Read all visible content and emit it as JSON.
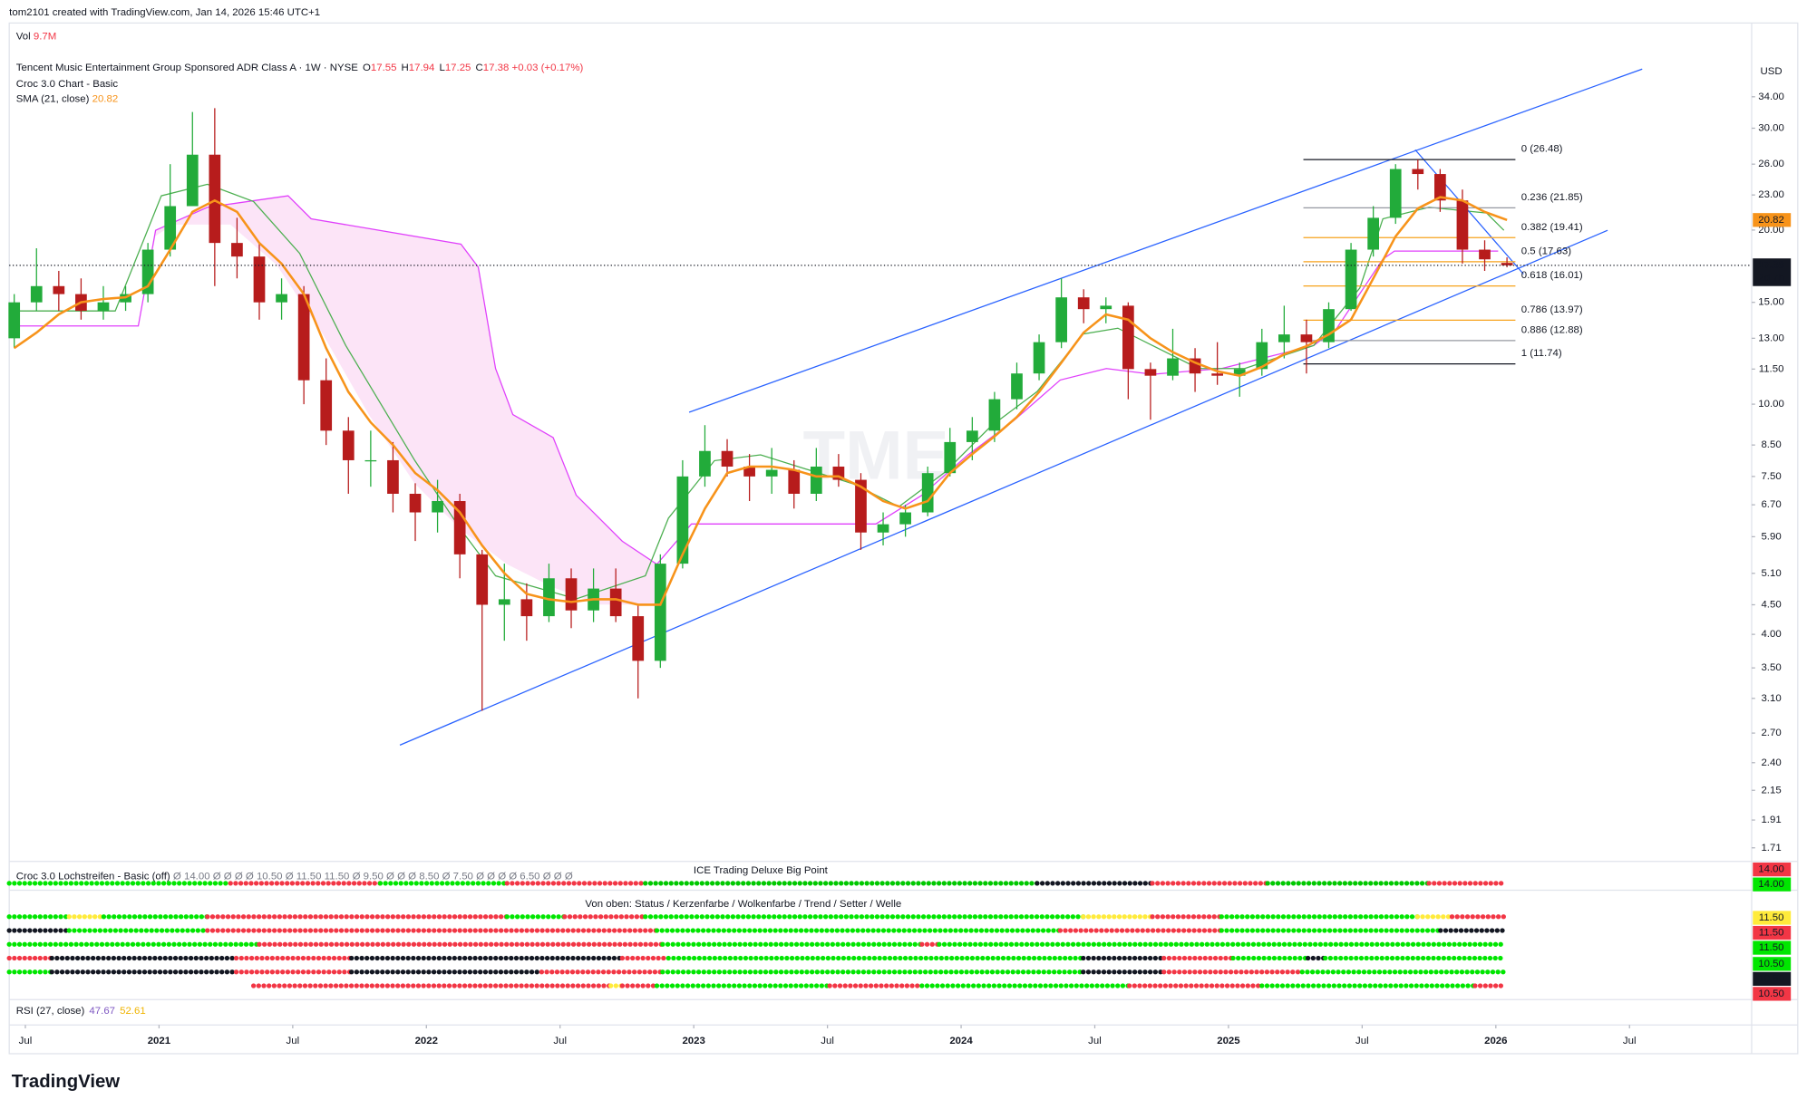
{
  "header": {
    "credit": "tom2101 created with TradingView.com, Jan 14, 2026 15:46 UTC+1",
    "brand": "TradingView",
    "watermark": "TME"
  },
  "chart_data": {
    "type": "candlestick",
    "title": "Tencent Music Entertainment Group Sponsored ADR Class A · 1W · NYSE",
    "quote_keys": [
      "O",
      "H",
      "L",
      "C"
    ],
    "change": "+0.03 (+0.17%)",
    "volume": {
      "label": "Vol",
      "value": "9.7M"
    },
    "currency": "USD",
    "countdown": "2d 7h",
    "up_color": "#22ab3a",
    "down_color": "#b71c1c",
    "log_scale": true,
    "grid": false,
    "x": [
      "2020-06",
      "2020-07",
      "2020-08",
      "2020-09",
      "2020-10",
      "2020-11",
      "2020-12",
      "2021-01",
      "2021-02",
      "2021-03",
      "2021-04",
      "2021-05",
      "2021-06",
      "2021-07",
      "2021-08",
      "2021-09",
      "2021-10",
      "2021-11",
      "2021-12",
      "2022-01",
      "2022-02",
      "2022-03",
      "2022-04",
      "2022-05",
      "2022-06",
      "2022-07",
      "2022-08",
      "2022-09",
      "2022-10",
      "2022-11",
      "2022-12",
      "2023-01",
      "2023-02",
      "2023-03",
      "2023-04",
      "2023-05",
      "2023-06",
      "2023-07",
      "2023-08",
      "2023-09",
      "2023-10",
      "2023-11",
      "2023-12",
      "2024-01",
      "2024-02",
      "2024-03",
      "2024-04",
      "2024-05",
      "2024-06",
      "2024-07",
      "2024-08",
      "2024-09",
      "2024-10",
      "2024-11",
      "2024-12",
      "2025-01",
      "2025-02",
      "2025-03",
      "2025-04",
      "2025-05",
      "2025-06",
      "2025-07",
      "2025-08",
      "2025-09",
      "2025-10",
      "2025-11",
      "2025-12",
      "2026-01"
    ],
    "open": [
      13,
      15,
      16,
      15.5,
      14.5,
      15,
      15.5,
      18.5,
      22,
      27,
      19,
      18,
      15,
      15.5,
      11,
      9,
      8,
      8,
      7,
      6.5,
      6.8,
      5.5,
      4.5,
      4.6,
      4.3,
      5,
      4.4,
      4.8,
      4.3,
      3.6,
      5.3,
      7.5,
      8.3,
      7.8,
      7.5,
      7.7,
      7,
      7.8,
      7.4,
      6,
      6.2,
      6.5,
      7.6,
      8.6,
      9,
      10.2,
      11.3,
      12.8,
      15.3,
      14.6,
      14.8,
      11.5,
      11.2,
      12,
      11.3,
      11.2,
      11.5,
      12.8,
      13.2,
      12.8,
      14.6,
      18.5,
      21,
      25.5,
      25,
      22.5,
      18.5,
      17.55
    ],
    "high": [
      15.5,
      18.6,
      17,
      16.5,
      16,
      16,
      19,
      26,
      32,
      32.5,
      21,
      19,
      16.5,
      16,
      12,
      9.5,
      9,
      8.6,
      7.3,
      7.4,
      7,
      5.6,
      5.3,
      4.9,
      5.3,
      5.2,
      5.2,
      5.2,
      4.5,
      5.5,
      8,
      9.2,
      8.7,
      8.2,
      8.4,
      8,
      8.4,
      8.2,
      7.6,
      6.5,
      6.7,
      7.8,
      9.1,
      9.5,
      10.5,
      11.8,
      13.2,
      16.5,
      15.8,
      15.3,
      15,
      11.8,
      13.5,
      12.5,
      12.8,
      11.8,
      13.5,
      14.8,
      14,
      15,
      19,
      22,
      26,
      26.48,
      25.5,
      23.5,
      19.2,
      17.94
    ],
    "low": [
      12.5,
      14.5,
      14.5,
      14,
      14,
      14.5,
      15,
      18,
      22,
      16,
      16.5,
      14,
      14,
      10,
      8.5,
      7,
      7.2,
      6.5,
      5.8,
      6,
      5,
      2.95,
      3.9,
      3.9,
      4.2,
      4.1,
      4.2,
      4.2,
      3.1,
      3.5,
      5.2,
      7.2,
      7.5,
      6.8,
      7,
      6.6,
      6.8,
      7.2,
      5.6,
      5.7,
      5.9,
      6.4,
      7.5,
      8,
      8.6,
      9.8,
      11,
      12.5,
      13.8,
      13.8,
      10.2,
      9.4,
      11,
      10.5,
      10.8,
      10.3,
      11.2,
      12,
      11.3,
      12.5,
      14.5,
      18,
      20.5,
      23.5,
      21.5,
      17.5,
      17,
      17.25
    ],
    "close": [
      15,
      16,
      15.5,
      14.5,
      15,
      15.5,
      18.5,
      22,
      27,
      19,
      18,
      15,
      15.5,
      11,
      9,
      8,
      8,
      7,
      6.5,
      6.8,
      5.5,
      4.5,
      4.6,
      4.3,
      5,
      4.4,
      4.8,
      4.3,
      3.6,
      5.3,
      7.5,
      8.3,
      7.8,
      7.5,
      7.7,
      7,
      7.8,
      7.4,
      6,
      6.2,
      6.5,
      7.6,
      8.6,
      9,
      10.2,
      11.3,
      12.8,
      15.3,
      14.6,
      14.8,
      11.5,
      11.2,
      12,
      11.3,
      11.2,
      11.5,
      12.8,
      13.2,
      12.8,
      14.6,
      18.5,
      21,
      25.5,
      25,
      22.5,
      18.5,
      17.8,
      17.38
    ],
    "indicators": [
      {
        "name": "Croc 3.0 Chart - Basic"
      },
      {
        "name": "SMA (21, close)",
        "color": "#f7931a",
        "values": [
          12.5,
          13.3,
          14.3,
          15,
          15.2,
          15.3,
          16,
          18.5,
          21.5,
          22.5,
          21.5,
          19,
          17.5,
          15.5,
          12.5,
          10.5,
          9.3,
          8.5,
          7.6,
          7.1,
          6.5,
          5.7,
          5.1,
          4.7,
          4.6,
          4.55,
          4.6,
          4.6,
          4.5,
          4.5,
          5.5,
          6.6,
          7.6,
          7.8,
          7.8,
          7.7,
          7.5,
          7.5,
          7.2,
          6.8,
          6.6,
          6.8,
          7.6,
          8.2,
          8.8,
          9.5,
          10.5,
          11.8,
          13.3,
          14.3,
          14,
          13,
          12.3,
          11.8,
          11.4,
          11.2,
          11.6,
          12.2,
          12.6,
          13.2,
          14,
          16.5,
          19.5,
          21.8,
          22.8,
          22.5,
          21.5,
          20.82
        ]
      }
    ],
    "ylim": [
      1.62,
      45.6
    ],
    "yticks": [
      {
        "value": 34,
        "label": "34.00"
      },
      {
        "value": 30,
        "label": "30.00"
      },
      {
        "value": 26,
        "label": "26.00"
      },
      {
        "value": 23,
        "label": "23.00"
      },
      {
        "value": 20,
        "label": "20.00"
      },
      {
        "value": 15,
        "label": "15.00"
      },
      {
        "value": 13,
        "label": "13.00"
      },
      {
        "value": 11.5,
        "label": "11.50"
      },
      {
        "value": 10,
        "label": "10.00"
      },
      {
        "value": 8.5,
        "label": "8.50"
      },
      {
        "value": 7.5,
        "label": "7.50"
      },
      {
        "value": 6.7,
        "label": "6.70"
      },
      {
        "value": 5.9,
        "label": "5.90"
      },
      {
        "value": 5.1,
        "label": "5.10"
      },
      {
        "value": 4.5,
        "label": "4.50"
      },
      {
        "value": 4,
        "label": "4.00"
      },
      {
        "value": 3.5,
        "label": "3.50"
      },
      {
        "value": 3.1,
        "label": "3.10"
      },
      {
        "value": 2.7,
        "label": "2.70"
      },
      {
        "value": 2.4,
        "label": "2.40"
      },
      {
        "value": 2.15,
        "label": "2.15"
      },
      {
        "value": 1.91,
        "label": "1.91"
      },
      {
        "value": 1.71,
        "label": "1.71"
      }
    ],
    "xticks": [
      {
        "value": "2020-07",
        "label": "Jul"
      },
      {
        "value": "2021-01",
        "label": "2021"
      },
      {
        "value": "2021-07",
        "label": "Jul"
      },
      {
        "value": "2022-01",
        "label": "2022"
      },
      {
        "value": "2022-07",
        "label": "Jul"
      },
      {
        "value": "2023-01",
        "label": "2023"
      },
      {
        "value": "2023-07",
        "label": "Jul"
      },
      {
        "value": "2024-01",
        "label": "2024"
      },
      {
        "value": "2024-07",
        "label": "Jul"
      },
      {
        "value": "2025-01",
        "label": "2025"
      },
      {
        "value": "2025-07",
        "label": "Jul"
      },
      {
        "value": "2026-01",
        "label": "2026"
      },
      {
        "value": "2026-07",
        "label": "Jul"
      }
    ],
    "fib_levels": [
      {
        "value": 26.48,
        "label": "0 (26.48)",
        "color": "#131722"
      },
      {
        "value": 21.85,
        "label": "0.236 (21.85)",
        "color": "#9598a1"
      },
      {
        "value": 19.41,
        "label": "0.382 (19.41)",
        "color": "#f7a21b"
      },
      {
        "value": 17.63,
        "label": "0.5 (17.63)",
        "color": "#f7a21b"
      },
      {
        "value": 16.01,
        "label": "0.618 (16.01)",
        "color": "#f7a21b"
      },
      {
        "value": 13.97,
        "label": "0.786 (13.97)",
        "color": "#f7a21b"
      },
      {
        "value": 12.88,
        "label": "0.886 (12.88)",
        "color": "#9598a1"
      },
      {
        "value": 11.74,
        "label": "1 (11.74)",
        "color": "#131722"
      }
    ]
  },
  "panes": {
    "lochstreifen": {
      "title": "Croc 3.0 Lochstreifen - Basic (off)",
      "values": "Ø 14.00 Ø Ø Ø Ø 10.50 Ø 11.50 11.50 Ø 9.50 Ø Ø Ø 8.50 Ø 7.50 Ø Ø Ø Ø 6.50 Ø Ø Ø"
    },
    "big_point": {
      "title": "ICE Trading Deluxe Big Point",
      "subtitle": "Von oben: Status / Kerzenfarbe / Wolkenfarbe / Trend / Setter / Welle"
    },
    "axis_labels": [
      {
        "label": "14.00",
        "color": "#f23645",
        "text": "#ffffff"
      },
      {
        "label": "14.00",
        "color": "#00e600",
        "text": "#131722"
      },
      {
        "label": "11.50",
        "color": "#ffeb3b",
        "text": "#131722"
      },
      {
        "label": "11.50",
        "color": "#f23645",
        "text": "#ffffff"
      },
      {
        "label": "11.50",
        "color": "#00e600",
        "text": "#131722"
      },
      {
        "label": "10.50",
        "color": "#00e600",
        "text": "#131722"
      },
      {
        "label": "10.50",
        "color": "#131722",
        "text": "#ffffff"
      },
      {
        "label": "10.50",
        "color": "#f23645",
        "text": "#ffffff"
      }
    ],
    "rsi": {
      "name": "RSI (27, close)",
      "values": [
        {
          "label": "47.67",
          "color": "#7e57c2"
        },
        {
          "label": "52.61",
          "color": "#f0b400"
        }
      ]
    }
  }
}
